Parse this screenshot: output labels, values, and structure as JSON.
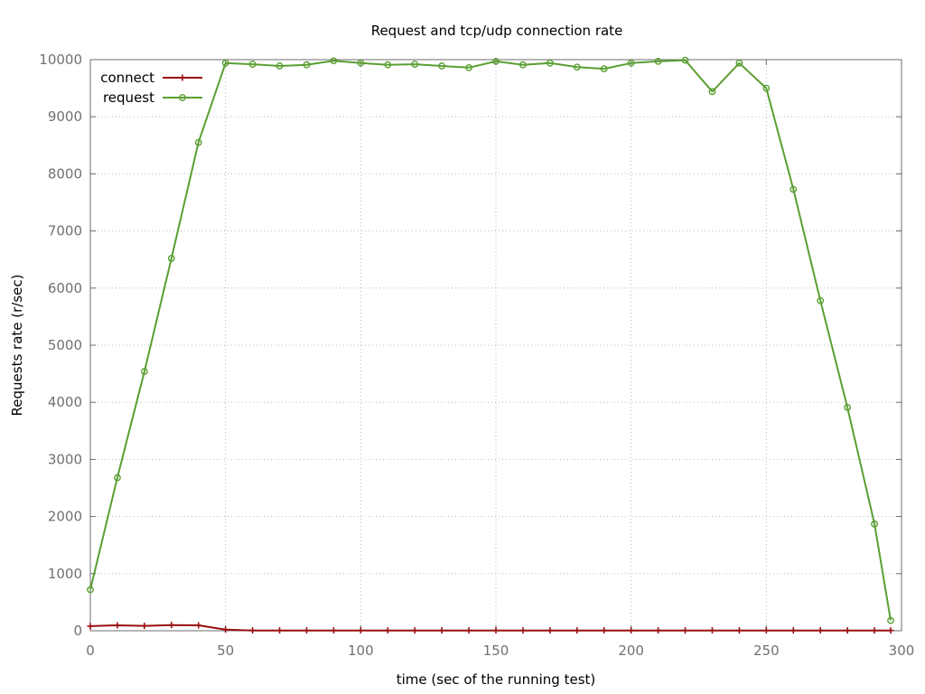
{
  "chart_data": {
    "type": "line",
    "title": "Request and tcp/udp connection rate",
    "xlabel": "time (sec of the running test)",
    "ylabel": "Requests rate (r/sec)",
    "xlim": [
      0,
      300
    ],
    "ylim": [
      0,
      10000
    ],
    "x_ticks": [
      0,
      50,
      100,
      150,
      200,
      250,
      300
    ],
    "y_ticks": [
      0,
      1000,
      2000,
      3000,
      4000,
      5000,
      6000,
      7000,
      8000,
      9000,
      10000
    ],
    "grid": true,
    "legend_position": "top-left",
    "series": [
      {
        "name": "connect",
        "color": "#9a0f0f",
        "marker": "plus",
        "x": [
          0,
          10,
          20,
          30,
          40,
          50,
          60,
          70,
          80,
          90,
          100,
          110,
          120,
          130,
          140,
          150,
          160,
          170,
          180,
          190,
          200,
          210,
          220,
          230,
          240,
          250,
          260,
          270,
          280,
          290,
          296
        ],
        "y": [
          80,
          95,
          85,
          100,
          95,
          20,
          5,
          5,
          5,
          5,
          5,
          5,
          5,
          5,
          5,
          5,
          5,
          5,
          5,
          5,
          5,
          5,
          5,
          5,
          5,
          5,
          5,
          5,
          5,
          5,
          5
        ]
      },
      {
        "name": "request",
        "color": "#5a9f32",
        "marker": "circle",
        "x": [
          0,
          10,
          20,
          30,
          40,
          50,
          60,
          70,
          80,
          90,
          100,
          110,
          120,
          130,
          140,
          150,
          160,
          170,
          180,
          190,
          200,
          210,
          220,
          230,
          240,
          250,
          260,
          270,
          280,
          290,
          296
        ],
        "y": [
          720,
          2680,
          4540,
          6520,
          8550,
          9940,
          9920,
          9890,
          9910,
          9980,
          9940,
          9910,
          9920,
          9890,
          9860,
          9970,
          9910,
          9940,
          9870,
          9840,
          9940,
          9970,
          9990,
          9440,
          9940,
          9500,
          7730,
          5780,
          3910,
          1870,
          180
        ]
      }
    ]
  }
}
